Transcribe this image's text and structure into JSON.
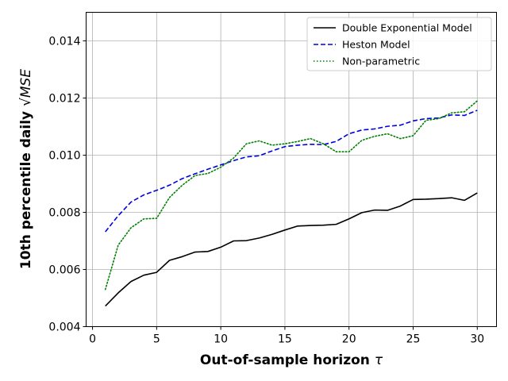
{
  "chart_data": {
    "type": "line",
    "xlabel": "Out-of-sample horizon",
    "xlabel_symbol": "τ",
    "ylabel": "10th percentile daily",
    "ylabel_symbol": "√MSE",
    "xlim": [
      -0.5,
      31.5
    ],
    "ylim": [
      0.004,
      0.015
    ],
    "x_ticks": [
      0,
      5,
      10,
      15,
      20,
      25,
      30
    ],
    "x_tick_labels": [
      "0",
      "5",
      "10",
      "15",
      "20",
      "25",
      "30"
    ],
    "y_ticks": [
      0.004,
      0.006,
      0.008,
      0.01,
      0.012,
      0.014
    ],
    "y_tick_labels": [
      "0.004",
      "0.006",
      "0.008",
      "0.010",
      "0.012",
      "0.014"
    ],
    "grid": true,
    "legend_position": "top-right",
    "x": [
      1,
      2,
      3,
      4,
      5,
      6,
      7,
      8,
      9,
      10,
      11,
      12,
      13,
      14,
      15,
      16,
      17,
      18,
      19,
      20,
      21,
      22,
      23,
      24,
      25,
      26,
      27,
      28,
      29,
      30
    ],
    "series": [
      {
        "name": "Double Exponential Model",
        "color": "#000000",
        "style": "solid",
        "values": [
          0.00472,
          0.00518,
          0.00558,
          0.0058,
          0.0059,
          0.00632,
          0.00645,
          0.00661,
          0.00663,
          0.00678,
          0.007,
          0.00701,
          0.0071,
          0.00723,
          0.00738,
          0.00752,
          0.00754,
          0.00755,
          0.00758,
          0.00777,
          0.00799,
          0.00808,
          0.00807,
          0.00822,
          0.00845,
          0.00846,
          0.00848,
          0.00851,
          0.00842,
          0.00868
        ]
      },
      {
        "name": "Heston Model",
        "color": "#0000dd",
        "style": "dashed",
        "values": [
          0.00732,
          0.00788,
          0.00836,
          0.00861,
          0.00877,
          0.00895,
          0.00918,
          0.00935,
          0.00951,
          0.00966,
          0.00981,
          0.00994,
          0.00998,
          0.01015,
          0.0103,
          0.01035,
          0.01038,
          0.01037,
          0.01048,
          0.01075,
          0.01088,
          0.01092,
          0.01101,
          0.01105,
          0.0112,
          0.01128,
          0.0113,
          0.01141,
          0.01139,
          0.01157
        ]
      },
      {
        "name": "Non-parametric",
        "color": "#008000",
        "style": "dotted",
        "values": [
          0.0053,
          0.00685,
          0.00746,
          0.00777,
          0.00779,
          0.00852,
          0.00895,
          0.00929,
          0.00936,
          0.00958,
          0.0099,
          0.0104,
          0.0105,
          0.01035,
          0.0104,
          0.01048,
          0.01058,
          0.0104,
          0.01012,
          0.01012,
          0.01052,
          0.01066,
          0.01075,
          0.01058,
          0.01068,
          0.01122,
          0.01128,
          0.01148,
          0.01152,
          0.0119
        ]
      }
    ]
  }
}
